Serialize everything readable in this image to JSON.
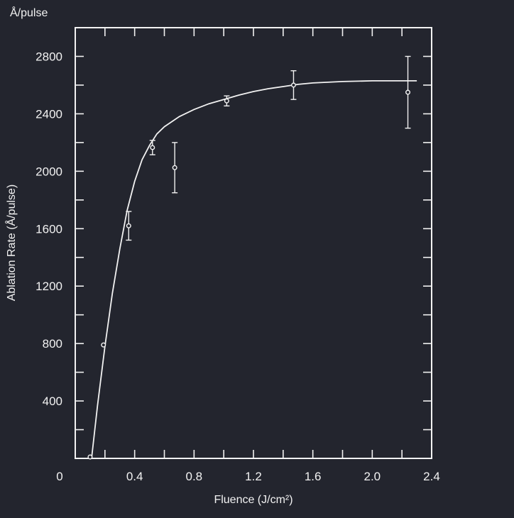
{
  "colors": {
    "background": "#23252e",
    "ink": "#f2f2f2"
  },
  "chart_data": {
    "type": "scatter",
    "title": "",
    "corner_unit_label": "Å/pulse",
    "xlabel": "Fluence (J/cm²)",
    "ylabel": "Ablation Rate (Å/pulse)",
    "xlim": [
      0,
      2.4
    ],
    "ylim": [
      0,
      3000
    ],
    "x_ticks": [
      0,
      0.4,
      0.8,
      1.2,
      1.6,
      2.0,
      2.4
    ],
    "x_tick_labels": [
      "0",
      "0.4",
      "0.8",
      "1.2",
      "1.6",
      "2.0",
      "2.4"
    ],
    "y_ticks": [
      400,
      800,
      1200,
      1600,
      2000,
      2400,
      2800
    ],
    "y_tick_labels": [
      "400",
      "800",
      "1200",
      "1600",
      "2000",
      "2400",
      "2800"
    ],
    "grid": false,
    "legend": "none",
    "series": [
      {
        "kind": "points_with_error_bars",
        "marker": "open-circle",
        "points": [
          {
            "x": 0.1,
            "y": 10,
            "err": 0
          },
          {
            "x": 0.19,
            "y": 790,
            "err": 0
          },
          {
            "x": 0.36,
            "y": 1620,
            "err": 100
          },
          {
            "x": 0.52,
            "y": 2165,
            "err": 50
          },
          {
            "x": 0.67,
            "y": 2025,
            "err": 175
          },
          {
            "x": 1.02,
            "y": 2490,
            "err": 35
          },
          {
            "x": 1.47,
            "y": 2600,
            "err": 100
          },
          {
            "x": 2.24,
            "y": 2550,
            "err": 250
          }
        ]
      },
      {
        "kind": "fit_curve",
        "x": [
          0.11,
          0.15,
          0.2,
          0.25,
          0.3,
          0.35,
          0.4,
          0.45,
          0.5,
          0.55,
          0.6,
          0.7,
          0.8,
          0.9,
          1.0,
          1.1,
          1.2,
          1.3,
          1.4,
          1.5,
          1.6,
          1.8,
          2.0,
          2.2,
          2.3
        ],
        "y": [
          0,
          370,
          780,
          1150,
          1460,
          1730,
          1930,
          2080,
          2180,
          2260,
          2310,
          2380,
          2430,
          2470,
          2500,
          2530,
          2555,
          2575,
          2590,
          2605,
          2615,
          2625,
          2630,
          2630,
          2630
        ]
      }
    ]
  }
}
